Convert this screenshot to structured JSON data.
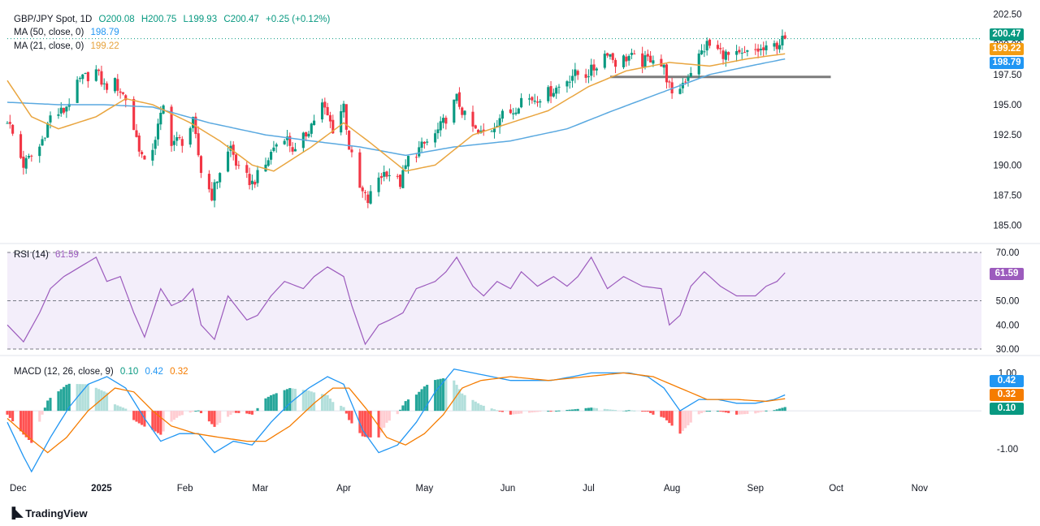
{
  "header": {
    "symbol": "GBP/JPY Spot, 1D",
    "open": "O200.08",
    "high": "H200.75",
    "low": "L199.93",
    "close": "C200.47",
    "change": "+0.25 (+0.12%)",
    "ma50_label": "MA (50, close, 0)",
    "ma50_value": "198.79",
    "ma21_label": "MA (21, close, 0)",
    "ma21_value": "199.22",
    "rsi_label": "RSI (14)",
    "rsi_value": "61.59",
    "macd_label": "MACD (12, 26, close, 9)",
    "macd_hist": "0.10",
    "macd_line": "0.42",
    "macd_signal": "0.32"
  },
  "tags": {
    "price": "200.47",
    "ma21": "199.22",
    "ma50": "198.79",
    "rsi": "61.59",
    "macd_line": "0.42",
    "macd_signal": "0.32",
    "macd_hist": "0.10"
  },
  "brand": {
    "name": "TradingView"
  },
  "colors": {
    "up": "#089981",
    "down": "#f23645",
    "ma50": "#5aa9e0",
    "ma21": "#e9a53f",
    "rsi": "#9c5bbd",
    "rsi_band": "#f3eefa",
    "macd": "#2196f3",
    "signal": "#f57c00",
    "support": "#7b7b7b"
  },
  "chart_data": [
    {
      "type": "candlestick",
      "title": "GBP/JPY Spot, 1D",
      "yticks": [
        "202.50",
        "200.00",
        "197.50",
        "195.00",
        "192.50",
        "190.00",
        "187.50",
        "185.00"
      ],
      "ylim": [
        183.5,
        203.0
      ],
      "xticks": [
        "Dec",
        "2025",
        "Feb",
        "Mar",
        "Apr",
        "May",
        "Jun",
        "Jul",
        "Aug",
        "Sep",
        "Oct",
        "Nov"
      ],
      "x_range": [
        "2024-11-27",
        "2025-11-24"
      ],
      "last_date": "2025-09-12",
      "close_anchors": [
        [
          "2024-11-27",
          193.8
        ],
        [
          "2024-12-03",
          190.0
        ],
        [
          "2024-12-09",
          191.5
        ],
        [
          "2024-12-13",
          194.0
        ],
        [
          "2024-12-18",
          194.5
        ],
        [
          "2024-12-24",
          197.0
        ],
        [
          "2024-12-30",
          197.8
        ],
        [
          "2025-01-02",
          196.5
        ],
        [
          "2025-01-06",
          196.8
        ],
        [
          "2025-01-10",
          195.5
        ],
        [
          "2025-01-13",
          193.0
        ],
        [
          "2025-01-17",
          190.0
        ],
        [
          "2025-01-20",
          191.5
        ],
        [
          "2025-01-24",
          194.8
        ],
        [
          "2025-01-27",
          192.0
        ],
        [
          "2025-01-31",
          192.0
        ],
        [
          "2025-02-04",
          193.5
        ],
        [
          "2025-02-07",
          189.5
        ],
        [
          "2025-02-11",
          187.5
        ],
        [
          "2025-02-14",
          189.5
        ],
        [
          "2025-02-18",
          191.5
        ],
        [
          "2025-02-21",
          189.5
        ],
        [
          "2025-02-26",
          188.5
        ],
        [
          "2025-03-03",
          190.0
        ],
        [
          "2025-03-06",
          191.5
        ],
        [
          "2025-03-10",
          192.5
        ],
        [
          "2025-03-14",
          191.0
        ],
        [
          "2025-03-19",
          193.0
        ],
        [
          "2025-03-24",
          195.0
        ],
        [
          "2025-03-28",
          193.0
        ],
        [
          "2025-04-01",
          195.0
        ],
        [
          "2025-04-03",
          191.5
        ],
        [
          "2025-04-07",
          188.0
        ],
        [
          "2025-04-10",
          187.0
        ],
        [
          "2025-04-14",
          189.0
        ],
        [
          "2025-04-17",
          189.5
        ],
        [
          "2025-04-22",
          188.5
        ],
        [
          "2025-04-25",
          190.5
        ],
        [
          "2025-04-30",
          191.5
        ],
        [
          "2025-05-05",
          192.5
        ],
        [
          "2025-05-08",
          193.5
        ],
        [
          "2025-05-13",
          195.5
        ],
        [
          "2025-05-16",
          194.0
        ],
        [
          "2025-05-21",
          192.5
        ],
        [
          "2025-05-26",
          193.0
        ],
        [
          "2025-05-29",
          194.0
        ],
        [
          "2025-06-03",
          194.5
        ],
        [
          "2025-06-06",
          195.5
        ],
        [
          "2025-06-11",
          195.5
        ],
        [
          "2025-06-16",
          196.0
        ],
        [
          "2025-06-20",
          196.5
        ],
        [
          "2025-06-25",
          197.5
        ],
        [
          "2025-06-30",
          197.5
        ],
        [
          "2025-07-03",
          198.0
        ],
        [
          "2025-07-08",
          199.5
        ],
        [
          "2025-07-11",
          198.5
        ],
        [
          "2025-07-16",
          199.0
        ],
        [
          "2025-07-21",
          198.5
        ],
        [
          "2025-07-25",
          199.0
        ],
        [
          "2025-07-29",
          198.0
        ],
        [
          "2025-07-31",
          196.5
        ],
        [
          "2025-08-01",
          195.5
        ],
        [
          "2025-08-04",
          196.5
        ],
        [
          "2025-08-07",
          197.5
        ],
        [
          "2025-08-11",
          199.0
        ],
        [
          "2025-08-14",
          200.0
        ],
        [
          "2025-08-18",
          199.5
        ],
        [
          "2025-08-22",
          199.0
        ],
        [
          "2025-08-27",
          199.0
        ],
        [
          "2025-09-01",
          199.5
        ],
        [
          "2025-09-05",
          199.5
        ],
        [
          "2025-09-09",
          200.0
        ],
        [
          "2025-09-12",
          200.47
        ]
      ],
      "ma21_anchors": [
        [
          "2024-11-27",
          197.0
        ],
        [
          "2024-12-06",
          194.0
        ],
        [
          "2024-12-16",
          193.0
        ],
        [
          "2024-12-30",
          194.0
        ],
        [
          "2025-01-10",
          195.5
        ],
        [
          "2025-01-20",
          195.0
        ],
        [
          "2025-02-03",
          193.5
        ],
        [
          "2025-02-14",
          192.0
        ],
        [
          "2025-02-26",
          190.0
        ],
        [
          "2025-03-06",
          189.5
        ],
        [
          "2025-03-20",
          191.5
        ],
        [
          "2025-04-01",
          193.5
        ],
        [
          "2025-04-10",
          192.0
        ],
        [
          "2025-04-24",
          189.5
        ],
        [
          "2025-05-05",
          190.0
        ],
        [
          "2025-05-19",
          192.5
        ],
        [
          "2025-06-02",
          193.5
        ],
        [
          "2025-06-16",
          194.5
        ],
        [
          "2025-07-01",
          196.5
        ],
        [
          "2025-07-15",
          197.8
        ],
        [
          "2025-07-31",
          198.5
        ],
        [
          "2025-08-15",
          198.2
        ],
        [
          "2025-08-29",
          198.8
        ],
        [
          "2025-09-12",
          199.22
        ]
      ],
      "ma50_anchors": [
        [
          "2024-11-27",
          195.2
        ],
        [
          "2024-12-16",
          195.0
        ],
        [
          "2025-01-02",
          195.0
        ],
        [
          "2025-01-20",
          194.8
        ],
        [
          "2025-02-10",
          193.5
        ],
        [
          "2025-03-03",
          192.5
        ],
        [
          "2025-03-20",
          192.0
        ],
        [
          "2025-04-07",
          191.5
        ],
        [
          "2025-04-24",
          190.8
        ],
        [
          "2025-05-12",
          191.5
        ],
        [
          "2025-06-02",
          192.0
        ],
        [
          "2025-06-23",
          193.0
        ],
        [
          "2025-07-10",
          194.5
        ],
        [
          "2025-07-28",
          196.0
        ],
        [
          "2025-08-15",
          197.5
        ],
        [
          "2025-09-01",
          198.3
        ],
        [
          "2025-09-12",
          198.79
        ]
      ],
      "support_line": {
        "price": 197.3,
        "from": "2025-07-09",
        "to": "2025-09-29"
      },
      "last_price": 200.47
    },
    {
      "type": "line",
      "title": "RSI (14)",
      "yticks": [
        "70.00",
        "50.00",
        "40.00",
        "30.00"
      ],
      "ylim": [
        28,
        72
      ],
      "band": [
        30,
        70
      ],
      "midline": 50,
      "anchors": [
        [
          "2024-11-27",
          40
        ],
        [
          "2024-12-03",
          33
        ],
        [
          "2024-12-09",
          45
        ],
        [
          "2024-12-13",
          55
        ],
        [
          "2024-12-18",
          60
        ],
        [
          "2024-12-24",
          64
        ],
        [
          "2024-12-30",
          68
        ],
        [
          "2025-01-03",
          58
        ],
        [
          "2025-01-08",
          60
        ],
        [
          "2025-01-13",
          45
        ],
        [
          "2025-01-17",
          35
        ],
        [
          "2025-01-23",
          55
        ],
        [
          "2025-01-27",
          48
        ],
        [
          "2025-01-31",
          50
        ],
        [
          "2025-02-04",
          55
        ],
        [
          "2025-02-07",
          40
        ],
        [
          "2025-02-12",
          34
        ],
        [
          "2025-02-17",
          52
        ],
        [
          "2025-02-24",
          42
        ],
        [
          "2025-02-28",
          44
        ],
        [
          "2025-03-05",
          52
        ],
        [
          "2025-03-10",
          58
        ],
        [
          "2025-03-17",
          55
        ],
        [
          "2025-03-21",
          60
        ],
        [
          "2025-03-26",
          64
        ],
        [
          "2025-04-01",
          60
        ],
        [
          "2025-04-04",
          48
        ],
        [
          "2025-04-09",
          32
        ],
        [
          "2025-04-14",
          40
        ],
        [
          "2025-04-18",
          42
        ],
        [
          "2025-04-23",
          45
        ],
        [
          "2025-04-28",
          55
        ],
        [
          "2025-05-05",
          58
        ],
        [
          "2025-05-09",
          62
        ],
        [
          "2025-05-13",
          68
        ],
        [
          "2025-05-19",
          56
        ],
        [
          "2025-05-23",
          52
        ],
        [
          "2025-05-28",
          58
        ],
        [
          "2025-06-02",
          55
        ],
        [
          "2025-06-06",
          62
        ],
        [
          "2025-06-12",
          56
        ],
        [
          "2025-06-18",
          60
        ],
        [
          "2025-06-23",
          56
        ],
        [
          "2025-06-27",
          60
        ],
        [
          "2025-07-02",
          68
        ],
        [
          "2025-07-08",
          55
        ],
        [
          "2025-07-14",
          60
        ],
        [
          "2025-07-21",
          56
        ],
        [
          "2025-07-28",
          55
        ],
        [
          "2025-07-31",
          40
        ],
        [
          "2025-08-04",
          44
        ],
        [
          "2025-08-08",
          56
        ],
        [
          "2025-08-13",
          62
        ],
        [
          "2025-08-19",
          56
        ],
        [
          "2025-08-25",
          52
        ],
        [
          "2025-09-01",
          52
        ],
        [
          "2025-09-05",
          56
        ],
        [
          "2025-09-09",
          58
        ],
        [
          "2025-09-12",
          61.59
        ]
      ],
      "last_value": 61.59
    },
    {
      "type": "macd",
      "title": "MACD (12, 26, close, 9)",
      "yticks": [
        "1.00",
        "-1.00"
      ],
      "ylim": [
        -1.75,
        1.35
      ],
      "macd_anchors": [
        [
          "2024-11-27",
          -0.3
        ],
        [
          "2024-12-03",
          -1.2
        ],
        [
          "2024-12-06",
          -1.6
        ],
        [
          "2024-12-13",
          -0.7
        ],
        [
          "2024-12-20",
          0.1
        ],
        [
          "2024-12-27",
          0.7
        ],
        [
          "2025-01-03",
          0.9
        ],
        [
          "2025-01-10",
          0.6
        ],
        [
          "2025-01-17",
          -0.2
        ],
        [
          "2025-01-23",
          -0.8
        ],
        [
          "2025-01-30",
          -0.6
        ],
        [
          "2025-02-06",
          -0.6
        ],
        [
          "2025-02-12",
          -1.1
        ],
        [
          "2025-02-19",
          -0.8
        ],
        [
          "2025-02-26",
          -0.9
        ],
        [
          "2025-03-05",
          -0.3
        ],
        [
          "2025-03-12",
          0.2
        ],
        [
          "2025-03-19",
          0.6
        ],
        [
          "2025-03-26",
          0.9
        ],
        [
          "2025-04-01",
          0.7
        ],
        [
          "2025-04-08",
          -0.5
        ],
        [
          "2025-04-14",
          -1.1
        ],
        [
          "2025-04-21",
          -0.9
        ],
        [
          "2025-04-28",
          -0.3
        ],
        [
          "2025-05-05",
          0.5
        ],
        [
          "2025-05-12",
          1.1
        ],
        [
          "2025-05-19",
          1.0
        ],
        [
          "2025-05-26",
          0.9
        ],
        [
          "2025-06-02",
          0.8
        ],
        [
          "2025-06-10",
          0.8
        ],
        [
          "2025-06-17",
          0.8
        ],
        [
          "2025-06-25",
          0.9
        ],
        [
          "2025-07-02",
          1.0
        ],
        [
          "2025-07-09",
          1.0
        ],
        [
          "2025-07-16",
          1.0
        ],
        [
          "2025-07-23",
          0.9
        ],
        [
          "2025-07-29",
          0.6
        ],
        [
          "2025-08-04",
          0.0
        ],
        [
          "2025-08-11",
          0.3
        ],
        [
          "2025-08-18",
          0.3
        ],
        [
          "2025-08-25",
          0.2
        ],
        [
          "2025-09-01",
          0.2
        ],
        [
          "2025-09-08",
          0.3
        ],
        [
          "2025-09-12",
          0.42
        ]
      ],
      "signal_anchors": [
        [
          "2024-11-27",
          -0.2
        ],
        [
          "2024-12-05",
          -0.7
        ],
        [
          "2024-12-12",
          -1.1
        ],
        [
          "2024-12-19",
          -0.7
        ],
        [
          "2024-12-27",
          0.0
        ],
        [
          "2025-01-06",
          0.6
        ],
        [
          "2025-01-13",
          0.5
        ],
        [
          "2025-01-20",
          0.0
        ],
        [
          "2025-01-27",
          -0.4
        ],
        [
          "2025-02-05",
          -0.6
        ],
        [
          "2025-02-14",
          -0.7
        ],
        [
          "2025-02-24",
          -0.8
        ],
        [
          "2025-03-03",
          -0.8
        ],
        [
          "2025-03-12",
          -0.4
        ],
        [
          "2025-03-21",
          0.2
        ],
        [
          "2025-03-28",
          0.6
        ],
        [
          "2025-04-03",
          0.6
        ],
        [
          "2025-04-10",
          0.0
        ],
        [
          "2025-04-17",
          -0.7
        ],
        [
          "2025-04-24",
          -0.9
        ],
        [
          "2025-05-01",
          -0.6
        ],
        [
          "2025-05-08",
          -0.1
        ],
        [
          "2025-05-15",
          0.6
        ],
        [
          "2025-05-22",
          0.8
        ],
        [
          "2025-06-02",
          0.9
        ],
        [
          "2025-06-16",
          0.8
        ],
        [
          "2025-06-30",
          0.9
        ],
        [
          "2025-07-14",
          1.0
        ],
        [
          "2025-07-25",
          0.9
        ],
        [
          "2025-08-04",
          0.6
        ],
        [
          "2025-08-14",
          0.3
        ],
        [
          "2025-08-25",
          0.3
        ],
        [
          "2025-09-05",
          0.25
        ],
        [
          "2025-09-12",
          0.32
        ]
      ],
      "last_values": {
        "macd": 0.42,
        "signal": 0.32,
        "histogram": 0.1
      }
    }
  ]
}
